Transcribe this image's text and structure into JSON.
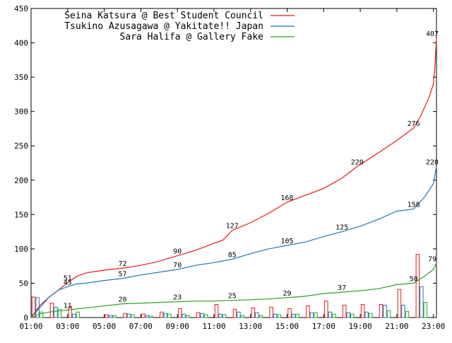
{
  "chart_data": {
    "type": "line",
    "title": "",
    "xlabel": "",
    "ylabel": "",
    "ylim": [
      0,
      450
    ],
    "yticks": [
      0,
      50,
      100,
      150,
      200,
      250,
      300,
      350,
      400,
      450
    ],
    "xlim": [
      "01:00",
      "23:10"
    ],
    "xticks": [
      "01:00",
      "03:00",
      "05:00",
      "07:00",
      "09:00",
      "11:00",
      "13:00",
      "15:00",
      "17:00",
      "19:00",
      "21:00",
      "23:00"
    ],
    "grid": false,
    "legend_position": "top-left",
    "series": [
      {
        "name": "Seina Katsura @ Best Student Council",
        "color": "#e41a1c",
        "cumulative": [
          [
            "01:00",
            0
          ],
          [
            "01:30",
            18
          ],
          [
            "02:00",
            30
          ],
          [
            "02:30",
            40
          ],
          [
            "03:00",
            51
          ],
          [
            "03:30",
            60
          ],
          [
            "04:00",
            65
          ],
          [
            "04:30",
            67
          ],
          [
            "05:00",
            69
          ],
          [
            "06:00",
            72
          ],
          [
            "07:00",
            76
          ],
          [
            "08:00",
            82
          ],
          [
            "09:00",
            90
          ],
          [
            "10:00",
            98
          ],
          [
            "11:00",
            108
          ],
          [
            "11:30",
            113
          ],
          [
            "12:00",
            127
          ],
          [
            "13:00",
            138
          ],
          [
            "14:00",
            152
          ],
          [
            "15:00",
            168
          ],
          [
            "16:00",
            178
          ],
          [
            "17:00",
            188
          ],
          [
            "18:00",
            203
          ],
          [
            "18:50",
            220
          ],
          [
            "20:00",
            240
          ],
          [
            "21:00",
            258
          ],
          [
            "21:55",
            276
          ],
          [
            "22:20",
            295
          ],
          [
            "22:45",
            320
          ],
          [
            "23:00",
            340
          ],
          [
            "23:05",
            365
          ],
          [
            "23:10",
            407
          ]
        ],
        "labels": [
          {
            "x": "03:00",
            "y": 51,
            "text": "51"
          },
          {
            "x": "06:00",
            "y": 72,
            "text": "72"
          },
          {
            "x": "09:00",
            "y": 90,
            "text": "90"
          },
          {
            "x": "12:00",
            "y": 127,
            "text": "127"
          },
          {
            "x": "15:00",
            "y": 168,
            "text": "168"
          },
          {
            "x": "18:50",
            "y": 220,
            "text": "220"
          },
          {
            "x": "21:55",
            "y": 276,
            "text": "276"
          },
          {
            "x": "23:10",
            "y": 407,
            "text": "407"
          }
        ],
        "bars": [
          [
            "01:10",
            30
          ],
          [
            "02:10",
            21
          ],
          [
            "03:10",
            16
          ],
          [
            "05:10",
            4
          ],
          [
            "06:10",
            6
          ],
          [
            "07:10",
            5
          ],
          [
            "08:10",
            8
          ],
          [
            "09:10",
            13
          ],
          [
            "10:10",
            7
          ],
          [
            "11:10",
            19
          ],
          [
            "12:10",
            12
          ],
          [
            "13:10",
            14
          ],
          [
            "14:10",
            15
          ],
          [
            "15:10",
            13
          ],
          [
            "16:10",
            17
          ],
          [
            "17:10",
            24
          ],
          [
            "18:10",
            18
          ],
          [
            "19:10",
            19
          ],
          [
            "20:10",
            19
          ],
          [
            "21:10",
            41
          ],
          [
            "22:10",
            92
          ]
        ]
      },
      {
        "name": "Tsukino Azusagawa @ Yakitate!! Japan",
        "color": "#1f78b4",
        "cumulative": [
          [
            "01:00",
            0
          ],
          [
            "01:30",
            15
          ],
          [
            "02:00",
            30
          ],
          [
            "02:30",
            40
          ],
          [
            "03:00",
            45
          ],
          [
            "03:30",
            49
          ],
          [
            "04:00",
            50
          ],
          [
            "05:00",
            54
          ],
          [
            "06:00",
            57
          ],
          [
            "07:00",
            62
          ],
          [
            "08:00",
            66
          ],
          [
            "09:00",
            70
          ],
          [
            "10:00",
            76
          ],
          [
            "11:00",
            80
          ],
          [
            "12:00",
            85
          ],
          [
            "13:00",
            93
          ],
          [
            "14:00",
            100
          ],
          [
            "15:00",
            105
          ],
          [
            "16:00",
            110
          ],
          [
            "17:00",
            118
          ],
          [
            "18:00",
            125
          ],
          [
            "19:00",
            133
          ],
          [
            "20:00",
            143
          ],
          [
            "21:00",
            155
          ],
          [
            "21:55",
            158
          ],
          [
            "22:30",
            175
          ],
          [
            "23:00",
            195
          ],
          [
            "23:10",
            220
          ]
        ],
        "labels": [
          {
            "x": "03:00",
            "y": 45,
            "text": "45"
          },
          {
            "x": "06:00",
            "y": 57,
            "text": "57"
          },
          {
            "x": "09:00",
            "y": 70,
            "text": "70"
          },
          {
            "x": "12:00",
            "y": 85,
            "text": "85"
          },
          {
            "x": "15:00",
            "y": 105,
            "text": "105"
          },
          {
            "x": "18:00",
            "y": 125,
            "text": "125"
          },
          {
            "x": "21:55",
            "y": 158,
            "text": "158"
          },
          {
            "x": "23:10",
            "y": 220,
            "text": "220"
          }
        ],
        "bars": [
          [
            "01:10",
            29
          ],
          [
            "02:10",
            15
          ],
          [
            "03:10",
            5
          ],
          [
            "05:10",
            3
          ],
          [
            "06:10",
            5
          ],
          [
            "07:10",
            3
          ],
          [
            "08:10",
            6
          ],
          [
            "09:10",
            5
          ],
          [
            "10:10",
            6
          ],
          [
            "11:10",
            5
          ],
          [
            "12:10",
            8
          ],
          [
            "13:10",
            7
          ],
          [
            "14:10",
            5
          ],
          [
            "15:10",
            5
          ],
          [
            "16:10",
            7
          ],
          [
            "17:10",
            8
          ],
          [
            "18:10",
            7
          ],
          [
            "19:10",
            8
          ],
          [
            "20:10",
            18
          ],
          [
            "21:10",
            18
          ],
          [
            "22:10",
            45
          ]
        ]
      },
      {
        "name": "Sara Halifa @ Gallery Fake",
        "color": "#2ca02c",
        "cumulative": [
          [
            "01:00",
            0
          ],
          [
            "01:30",
            5
          ],
          [
            "02:00",
            8
          ],
          [
            "03:00",
            11
          ],
          [
            "04:00",
            14
          ],
          [
            "05:00",
            17
          ],
          [
            "06:00",
            20
          ],
          [
            "07:00",
            21
          ],
          [
            "08:00",
            22
          ],
          [
            "09:00",
            23
          ],
          [
            "10:00",
            24
          ],
          [
            "11:00",
            24
          ],
          [
            "12:00",
            25
          ],
          [
            "13:00",
            26
          ],
          [
            "14:00",
            27
          ],
          [
            "15:00",
            29
          ],
          [
            "16:00",
            31
          ],
          [
            "17:00",
            35
          ],
          [
            "18:00",
            37
          ],
          [
            "19:00",
            39
          ],
          [
            "20:00",
            42
          ],
          [
            "21:00",
            48
          ],
          [
            "21:55",
            50
          ],
          [
            "22:30",
            60
          ],
          [
            "23:00",
            70
          ],
          [
            "23:10",
            79
          ]
        ],
        "labels": [
          {
            "x": "03:00",
            "y": 11,
            "text": "11"
          },
          {
            "x": "06:00",
            "y": 20,
            "text": "20"
          },
          {
            "x": "09:00",
            "y": 23,
            "text": "23"
          },
          {
            "x": "12:00",
            "y": 25,
            "text": "25"
          },
          {
            "x": "15:00",
            "y": 29,
            "text": "29"
          },
          {
            "x": "18:00",
            "y": 37,
            "text": "37"
          },
          {
            "x": "21:55",
            "y": 50,
            "text": "50"
          },
          {
            "x": "23:10",
            "y": 79,
            "text": "79"
          }
        ],
        "bars": [
          [
            "01:10",
            8
          ],
          [
            "02:10",
            12
          ],
          [
            "03:10",
            8
          ],
          [
            "05:10",
            3
          ],
          [
            "06:10",
            4
          ],
          [
            "07:10",
            2
          ],
          [
            "08:10",
            5
          ],
          [
            "09:10",
            3
          ],
          [
            "10:10",
            4
          ],
          [
            "11:10",
            4
          ],
          [
            "12:10",
            3
          ],
          [
            "13:10",
            3
          ],
          [
            "14:10",
            4
          ],
          [
            "15:10",
            5
          ],
          [
            "16:10",
            7
          ],
          [
            "17:10",
            5
          ],
          [
            "18:10",
            5
          ],
          [
            "19:10",
            6
          ],
          [
            "20:10",
            10
          ],
          [
            "21:10",
            9
          ],
          [
            "22:10",
            22
          ]
        ]
      }
    ]
  }
}
